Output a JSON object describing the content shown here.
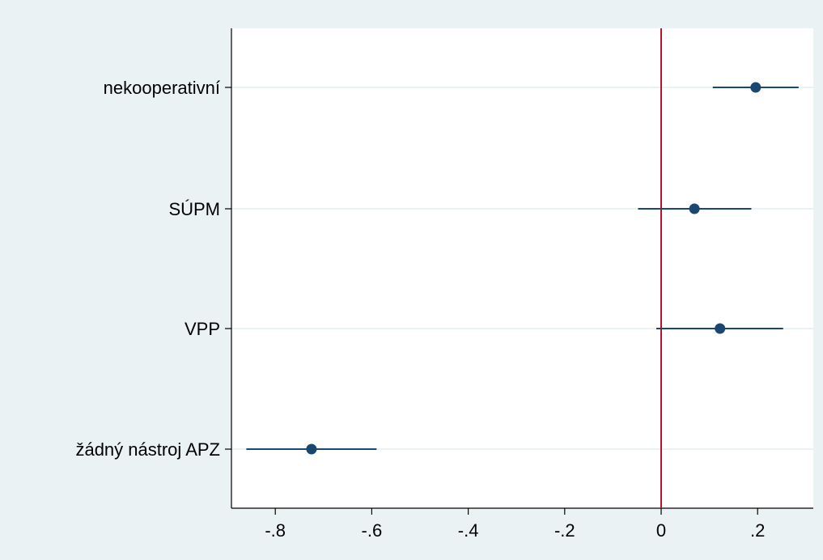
{
  "chart_data": {
    "type": "scatter",
    "subtype": "coefficient-plot",
    "title": "",
    "xlabel": "",
    "ylabel": "",
    "xlim": [
      -0.89,
      0.315
    ],
    "xticks": [
      -0.8,
      -0.6,
      -0.4,
      -0.2,
      0,
      0.2
    ],
    "xtick_labels": [
      "-.8",
      "-.6",
      "-.4",
      "-.2",
      "0",
      ".2"
    ],
    "categories": [
      "nekooperativní",
      "SÚPM",
      "VPP",
      "žádný nástroj APZ"
    ],
    "series": [
      {
        "estimates": [
          0.196,
          0.069,
          0.122,
          -0.725
        ],
        "ci_low": [
          0.107,
          -0.048,
          -0.01,
          -0.86
        ],
        "ci_high": [
          0.285,
          0.187,
          0.253,
          -0.59
        ]
      }
    ],
    "reference_line": {
      "x": 0,
      "color": "#c0112b"
    },
    "grid": true,
    "legend": "none",
    "colors": {
      "outer_background": "#eaf2f3",
      "plot_background": "#ffffff",
      "marker": "#1a476f",
      "gridline": "#eaf2f3"
    }
  }
}
